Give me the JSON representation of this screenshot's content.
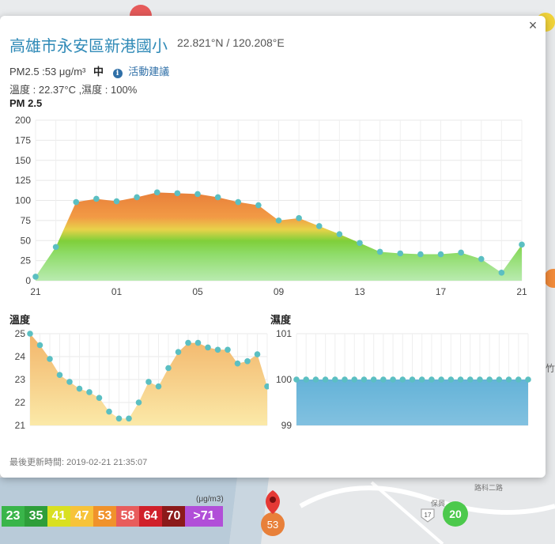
{
  "popup": {
    "title": "高雄市永安區新港國小",
    "coords": "22.821°N / 120.208°E",
    "pm_text": "PM2.5 :53 μg/m³",
    "pm_level": "中",
    "advice_label": "活動建議",
    "env_text": "溫度 : 22.37°C ,濕度 : 100%",
    "updated": "最後更新時間: 2019-02-21 21:35:07",
    "close_icon": "×"
  },
  "colors": {
    "title": "#2f8ab7",
    "marker_pin": "#e53935",
    "marker_value": "#e8803a",
    "temp_fill": "#f5c77a",
    "humid_fill": "#6fb8d9",
    "point": "#5bbfc2"
  },
  "map": {
    "marker_value": "53",
    "station_green_value": "20",
    "road_label": "保興",
    "road_label2": "路科二路",
    "highway_badge": "17",
    "side_label": "竹"
  },
  "legend": {
    "unit": "(μg/m3)",
    "items": [
      {
        "label": "23",
        "color": "#39b54a"
      },
      {
        "label": "35",
        "color": "#2e9e3a"
      },
      {
        "label": "41",
        "color": "#d9e021"
      },
      {
        "label": "47",
        "color": "#f7c33a"
      },
      {
        "label": "53",
        "color": "#f0922b"
      },
      {
        "label": "58",
        "color": "#e85d5d"
      },
      {
        "label": "64",
        "color": "#d0202b"
      },
      {
        "label": "70",
        "color": "#8b1a1a"
      },
      {
        "label": ">71",
        "color": "#b14fd8"
      }
    ]
  },
  "chart_data": [
    {
      "type": "area",
      "title": "PM 2.5",
      "ylim": [
        0,
        200
      ],
      "yticks": [
        0,
        25,
        50,
        75,
        100,
        125,
        150,
        175,
        200
      ],
      "x": [
        0,
        1,
        2,
        3,
        4,
        5,
        6,
        7,
        8,
        9,
        10,
        11,
        12,
        13,
        14,
        15,
        16,
        17,
        18,
        19,
        20,
        21,
        22,
        23,
        24
      ],
      "xtick_labels": [
        {
          "x": 0,
          "label": "21"
        },
        {
          "x": 4,
          "label": "01"
        },
        {
          "x": 8,
          "label": "05"
        },
        {
          "x": 12,
          "label": "09"
        },
        {
          "x": 16,
          "label": "13"
        },
        {
          "x": 20,
          "label": "17"
        },
        {
          "x": 24,
          "label": "21"
        }
      ],
      "values": [
        5,
        42,
        98,
        102,
        99,
        104,
        110,
        109,
        108,
        104,
        98,
        94,
        75,
        78,
        68,
        58,
        47,
        36,
        34,
        33,
        33,
        35,
        27,
        10,
        45
      ],
      "grid": true
    },
    {
      "type": "area",
      "title": "溫度",
      "ylim": [
        21,
        25
      ],
      "yticks": [
        21,
        22,
        23,
        24,
        25
      ],
      "values": [
        25,
        24.5,
        23.9,
        23.2,
        22.9,
        22.6,
        22.45,
        22.2,
        21.6,
        21.3,
        21.3,
        22.0,
        22.9,
        22.7,
        23.5,
        24.2,
        24.6,
        24.6,
        24.4,
        24.3,
        24.3,
        23.7,
        23.8,
        24.1,
        22.7
      ],
      "grid": true
    },
    {
      "type": "area",
      "title": "濕度",
      "ylim": [
        99,
        101
      ],
      "yticks": [
        99,
        100,
        101
      ],
      "values": [
        100,
        100,
        100,
        100,
        100,
        100,
        100,
        100,
        100,
        100,
        100,
        100,
        100,
        100,
        100,
        100,
        100,
        100,
        100,
        100,
        100,
        100,
        100,
        100,
        100
      ],
      "grid": true
    }
  ]
}
